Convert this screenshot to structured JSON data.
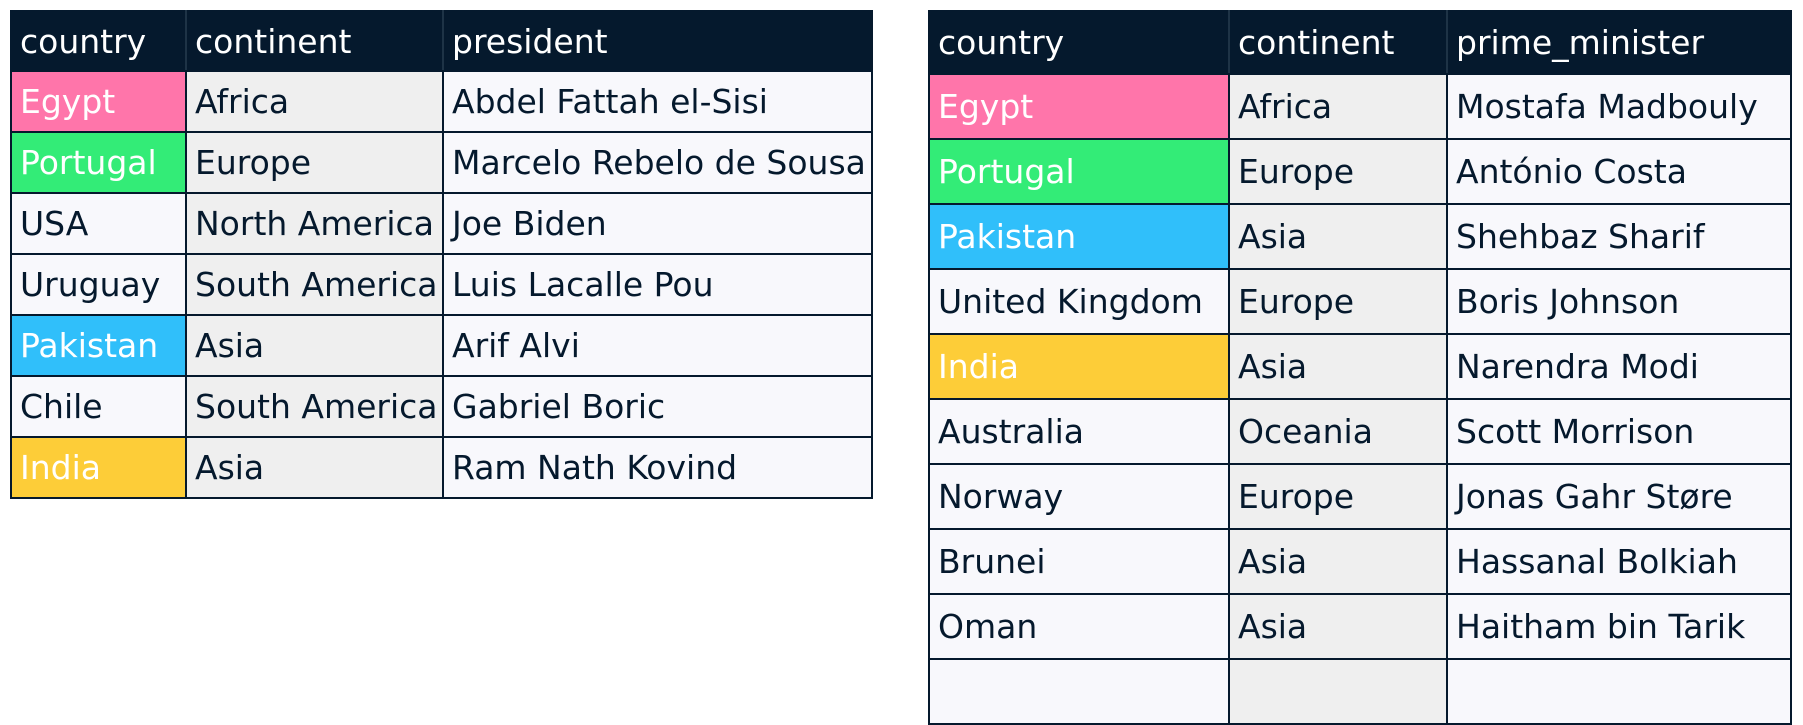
{
  "presidents_table": {
    "headers": [
      "country",
      "continent",
      "president"
    ],
    "rows": [
      {
        "country": "Egypt",
        "continent": "Africa",
        "leader": "Abdel Fattah el-Sisi",
        "highlight": "#ff75aa"
      },
      {
        "country": "Portugal",
        "continent": "Europe",
        "leader": "Marcelo Rebelo de Sousa",
        "highlight": "#33ec77"
      },
      {
        "country": "USA",
        "continent": "North America",
        "leader": "Joe Biden",
        "highlight": null
      },
      {
        "country": "Uruguay",
        "continent": "South America",
        "leader": "Luis Lacalle Pou",
        "highlight": null
      },
      {
        "country": "Pakistan",
        "continent": "Asia",
        "leader": "Arif Alvi",
        "highlight": "#30bffa"
      },
      {
        "country": "Chile",
        "continent": "South America",
        "leader": "Gabriel Boric",
        "highlight": null
      },
      {
        "country": "India",
        "continent": "Asia",
        "leader": "Ram Nath Kovind",
        "highlight": "#fdcd38"
      }
    ]
  },
  "prime_ministers_table": {
    "headers": [
      "country",
      "continent",
      "prime_minister"
    ],
    "rows": [
      {
        "country": "Egypt",
        "continent": "Africa",
        "leader": "Mostafa Madbouly",
        "highlight": "#ff75aa"
      },
      {
        "country": "Portugal",
        "continent": "Europe",
        "leader": "António Costa",
        "highlight": "#33ec77"
      },
      {
        "country": "Pakistan",
        "continent": "Asia",
        "leader": "Shehbaz Sharif",
        "highlight": "#30bffa"
      },
      {
        "country": "United Kingdom",
        "continent": "Europe",
        "leader": "Boris Johnson",
        "highlight": null
      },
      {
        "country": "India",
        "continent": "Asia",
        "leader": "Narendra Modi",
        "highlight": "#fdcd38"
      },
      {
        "country": "Australia",
        "continent": "Oceania",
        "leader": "Scott Morrison",
        "highlight": null
      },
      {
        "country": "Norway",
        "continent": "Europe",
        "leader": "Jonas Gahr Støre",
        "highlight": null
      },
      {
        "country": "Brunei",
        "continent": "Asia",
        "leader": "Hassanal Bolkiah",
        "highlight": null
      },
      {
        "country": "Oman",
        "continent": "Asia",
        "leader": "Haitham bin Tarik",
        "highlight": null
      },
      {
        "country": "",
        "continent": "",
        "leader": "",
        "highlight": null
      }
    ]
  }
}
